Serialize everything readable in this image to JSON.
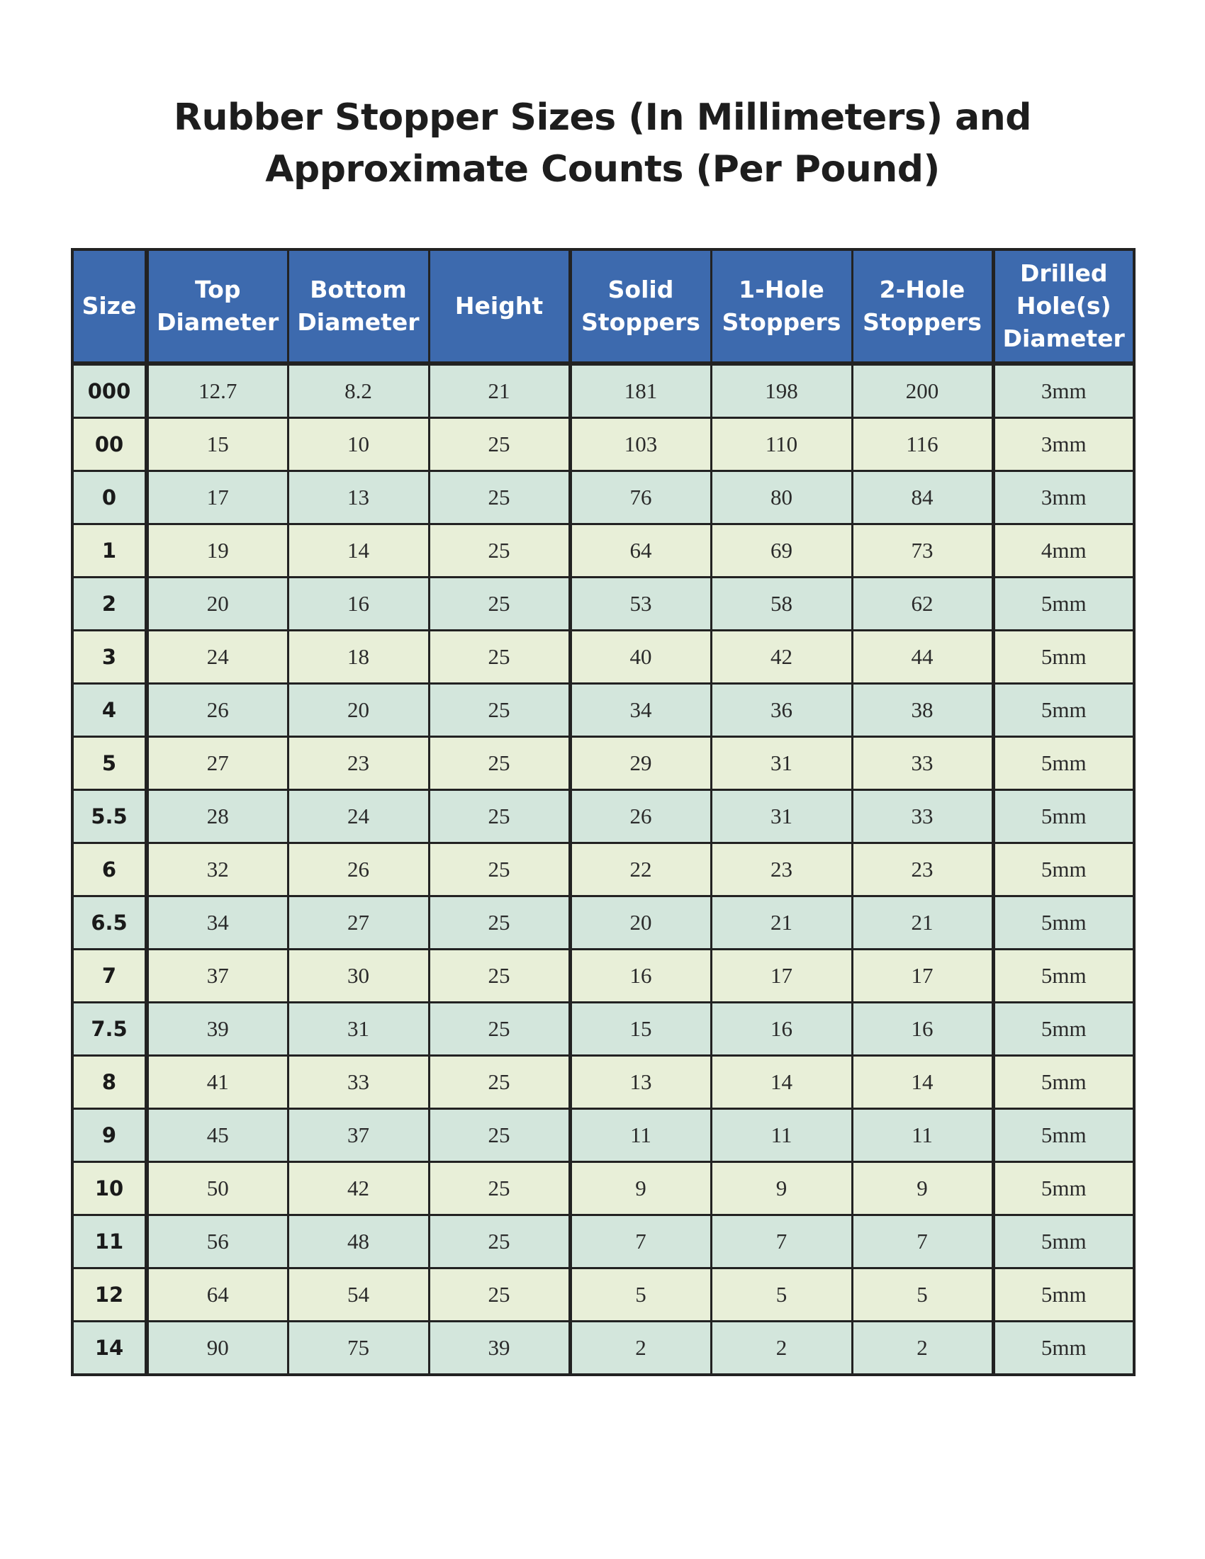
{
  "title": {
    "line1": "Rubber Stopper Sizes (In Millimeters) and",
    "line2": "Approximate Counts (Per Pound)"
  },
  "colors": {
    "header_bg": "#3d6aae",
    "row_odd": "#d3e6dc",
    "row_even": "#e8efd8"
  },
  "columns": [
    "Size",
    "Top Diameter",
    "Bottom Diameter",
    "Height",
    "Solid Stoppers",
    "1-Hole Stoppers",
    "2-Hole Stoppers",
    "Drilled Hole(s) Diameter"
  ],
  "rows": [
    [
      "000",
      "12.7",
      "8.2",
      "21",
      "181",
      "198",
      "200",
      "3mm"
    ],
    [
      "00",
      "15",
      "10",
      "25",
      "103",
      "110",
      "116",
      "3mm"
    ],
    [
      "0",
      "17",
      "13",
      "25",
      "76",
      "80",
      "84",
      "3mm"
    ],
    [
      "1",
      "19",
      "14",
      "25",
      "64",
      "69",
      "73",
      "4mm"
    ],
    [
      "2",
      "20",
      "16",
      "25",
      "53",
      "58",
      "62",
      "5mm"
    ],
    [
      "3",
      "24",
      "18",
      "25",
      "40",
      "42",
      "44",
      "5mm"
    ],
    [
      "4",
      "26",
      "20",
      "25",
      "34",
      "36",
      "38",
      "5mm"
    ],
    [
      "5",
      "27",
      "23",
      "25",
      "29",
      "31",
      "33",
      "5mm"
    ],
    [
      "5.5",
      "28",
      "24",
      "25",
      "26",
      "31",
      "33",
      "5mm"
    ],
    [
      "6",
      "32",
      "26",
      "25",
      "22",
      "23",
      "23",
      "5mm"
    ],
    [
      "6.5",
      "34",
      "27",
      "25",
      "20",
      "21",
      "21",
      "5mm"
    ],
    [
      "7",
      "37",
      "30",
      "25",
      "16",
      "17",
      "17",
      "5mm"
    ],
    [
      "7.5",
      "39",
      "31",
      "25",
      "15",
      "16",
      "16",
      "5mm"
    ],
    [
      "8",
      "41",
      "33",
      "25",
      "13",
      "14",
      "14",
      "5mm"
    ],
    [
      "9",
      "45",
      "37",
      "25",
      "11",
      "11",
      "11",
      "5mm"
    ],
    [
      "10",
      "50",
      "42",
      "25",
      "9",
      "9",
      "9",
      "5mm"
    ],
    [
      "11",
      "56",
      "48",
      "25",
      "7",
      "7",
      "7",
      "5mm"
    ],
    [
      "12",
      "64",
      "54",
      "25",
      "5",
      "5",
      "5",
      "5mm"
    ],
    [
      "14",
      "90",
      "75",
      "39",
      "2",
      "2",
      "2",
      "5mm"
    ]
  ]
}
